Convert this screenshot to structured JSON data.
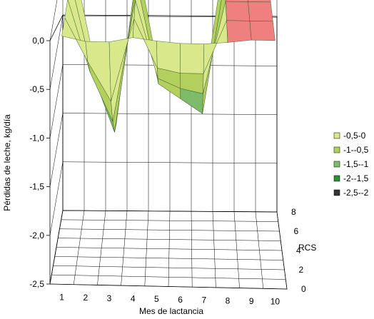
{
  "chart_data": {
    "type": "surface-3d",
    "title": "",
    "xlabel": "Mes de lactancia",
    "ylabel": "Pérdidas de leche, kg/día",
    "zlabel": "RCS",
    "x_ticks": [
      "1",
      "2",
      "3",
      "4",
      "5",
      "6",
      "7",
      "8",
      "9",
      "10"
    ],
    "y_ticks": [
      "0,0",
      "-0,5",
      "-1,0",
      "-1,5",
      "-2,0",
      "-2,5"
    ],
    "z_ticks": [
      "0",
      "2",
      "4",
      "6",
      "8"
    ],
    "ylim": [
      -2.5,
      0.0
    ],
    "legend_position": "right",
    "bands": [
      {
        "label": "-0,5-0",
        "color": "#d9e88a"
      },
      {
        "label": "-1--0,5",
        "color": "#b3d05e"
      },
      {
        "label": "-1,5--1",
        "color": "#7dbb6a"
      },
      {
        "label": "-2--1,5",
        "color": "#2f8a3a"
      },
      {
        "label": "-2,5--2",
        "color": "#333333"
      }
    ],
    "positive_color": "#f08080",
    "surface_rows": [
      {
        "rcs": 0,
        "values": [
          0.05,
          0.0,
          0.0,
          0.05,
          0.02,
          0.0,
          0.0,
          0.02,
          0.05,
          0.05
        ]
      },
      {
        "rcs": 2,
        "values": [
          0.05,
          -0.4,
          -0.8,
          0.05,
          -0.45,
          -0.5,
          -0.5,
          0.05,
          0.05,
          0.05
        ]
      },
      {
        "rcs": 4,
        "values": [
          0.05,
          -0.7,
          -1.2,
          0.05,
          -0.75,
          -0.85,
          -0.9,
          0.05,
          0.05,
          0.05
        ]
      },
      {
        "rcs": 6,
        "values": [
          0.05,
          -0.9,
          -1.5,
          0.05,
          -1.0,
          -1.15,
          -1.3,
          0.05,
          0.05,
          0.05
        ]
      },
      {
        "rcs": 8,
        "values": [
          0.05,
          -1.0,
          -1.6,
          0.05,
          -1.1,
          -1.25,
          -1.4,
          0.05,
          0.05,
          0.05
        ]
      }
    ]
  }
}
